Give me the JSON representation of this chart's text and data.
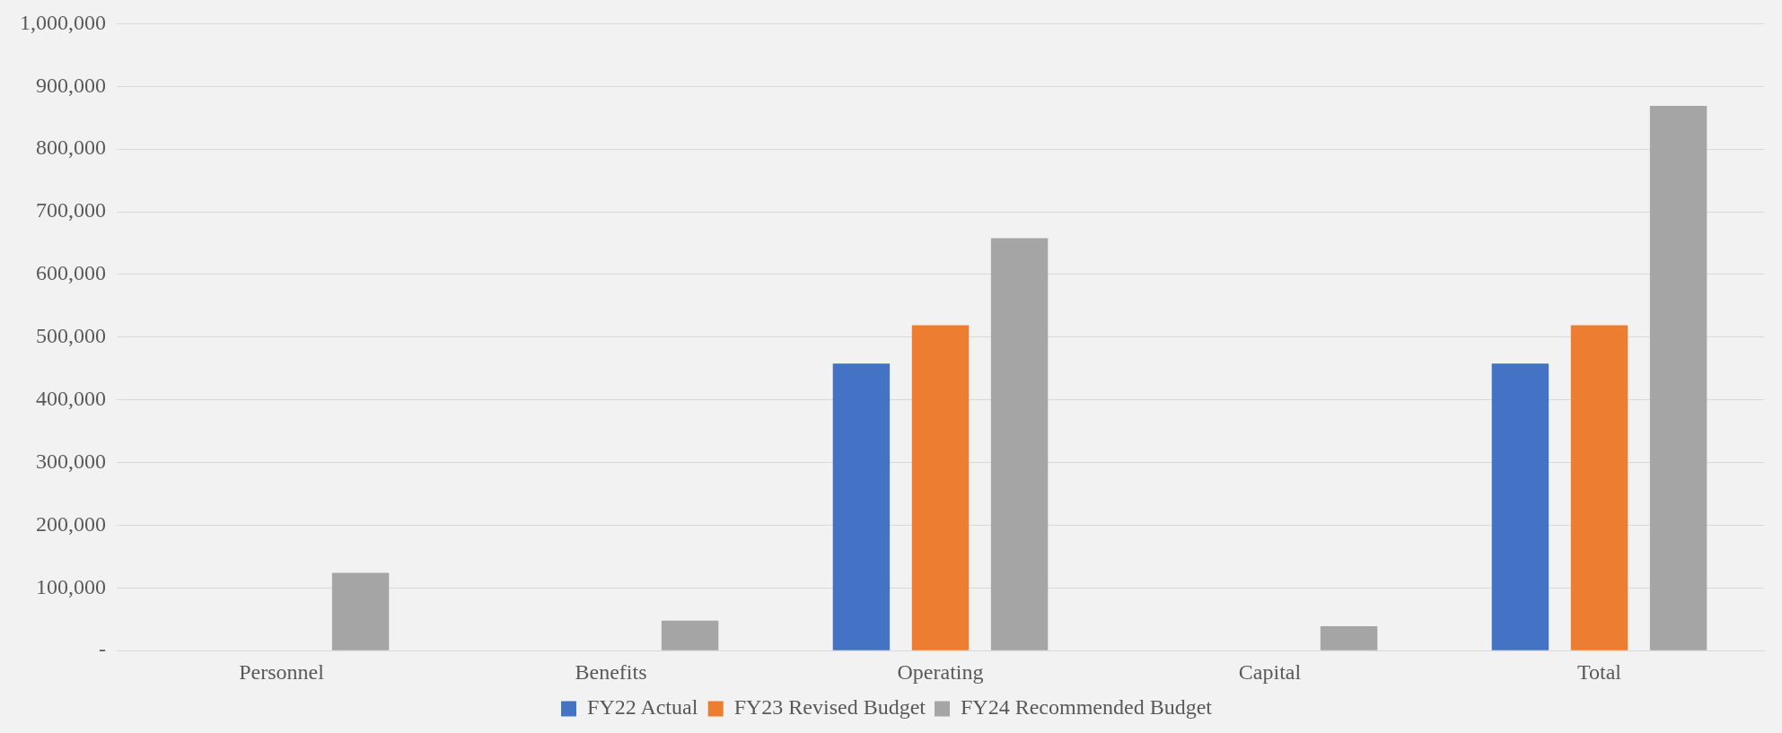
{
  "chart_data": {
    "type": "bar",
    "categories": [
      "Personnel",
      "Benefits",
      "Operating",
      "Capital",
      "Total"
    ],
    "series": [
      {
        "name": "FY22 Actual",
        "color": "#4472c4",
        "values": [
          0,
          0,
          458000,
          0,
          458000
        ]
      },
      {
        "name": "FY23 Revised Budget",
        "color": "#ed7d31",
        "values": [
          0,
          0,
          519000,
          0,
          519000
        ]
      },
      {
        "name": "FY24 Recommended Budget",
        "color": "#a5a5a5",
        "values": [
          124000,
          48000,
          658000,
          39000,
          869000
        ]
      }
    ],
    "ylim": [
      0,
      1000000
    ],
    "yticks": [
      {
        "value": 0,
        "label": "-"
      },
      {
        "value": 100000,
        "label": "100,000"
      },
      {
        "value": 200000,
        "label": "200,000"
      },
      {
        "value": 300000,
        "label": "300,000"
      },
      {
        "value": 400000,
        "label": "400,000"
      },
      {
        "value": 500000,
        "label": "500,000"
      },
      {
        "value": 600000,
        "label": "600,000"
      },
      {
        "value": 700000,
        "label": "700,000"
      },
      {
        "value": 800000,
        "label": "800,000"
      },
      {
        "value": 900000,
        "label": "900,000"
      },
      {
        "value": 1000000,
        "label": "1,000,000"
      }
    ],
    "grid": "y",
    "legend": "bottom"
  }
}
